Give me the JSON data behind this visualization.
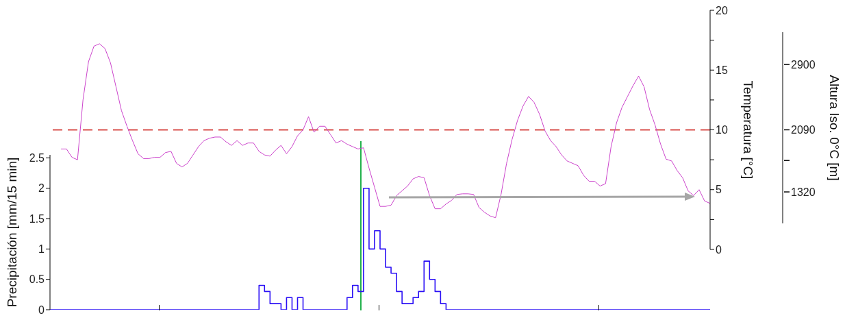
{
  "chart_data": [
    {
      "type": "step",
      "ylabel": "Precipitación [mm/15 min]",
      "categories": [
        null,
        null,
        null,
        null,
        null,
        null,
        null,
        null,
        null,
        null,
        null,
        null,
        null,
        null,
        null,
        null,
        null,
        null,
        null,
        null,
        null,
        null,
        null,
        null,
        null,
        null,
        null,
        null,
        null,
        null,
        null,
        null,
        null,
        null,
        null,
        null,
        null,
        null,
        null,
        null,
        null,
        null,
        null,
        null,
        null,
        null,
        null,
        null,
        null,
        null,
        null,
        null,
        null,
        null,
        null,
        null,
        null,
        null,
        null,
        null,
        null,
        null,
        null,
        null,
        null,
        null,
        null,
        null,
        null,
        null,
        null,
        null,
        null,
        null,
        null,
        null,
        null,
        null,
        null,
        null,
        null,
        null,
        null,
        null,
        null,
        null,
        null,
        null,
        null,
        null,
        null,
        null,
        null,
        null,
        null,
        null,
        null,
        null,
        null,
        null,
        null,
        null,
        null,
        null,
        null,
        null,
        null,
        null,
        null,
        null,
        null,
        null,
        null,
        null,
        null,
        null,
        null,
        null,
        null,
        null,
        null
      ],
      "ylim": [
        0,
        2.55
      ],
      "yticks": [
        0,
        0.5,
        1,
        1.5,
        2,
        2.5
      ],
      "tick_labels": "y",
      "series": [
        {
          "color": "#2b10f5",
          "values": [
            0,
            0,
            0,
            0,
            0,
            0,
            0,
            0,
            0,
            0,
            0,
            0,
            0,
            0,
            0,
            0,
            0,
            0,
            0,
            0,
            0,
            0,
            0,
            0,
            0,
            0,
            0,
            0,
            0,
            0,
            0,
            0,
            0,
            0,
            0,
            0,
            0,
            0,
            0.4,
            0.3,
            0.1,
            0.1,
            0,
            0.2,
            0,
            0.2,
            0,
            0,
            0,
            0,
            0,
            0,
            0,
            0,
            0.2,
            0.4,
            0.3,
            2.0,
            1.0,
            1.3,
            1.0,
            0.7,
            0.6,
            0.3,
            0.1,
            0.1,
            0.2,
            0.3,
            0.8,
            0.5,
            0.3,
            0.1,
            0,
            0,
            0,
            0,
            0,
            0,
            0,
            0,
            0,
            0,
            0,
            0,
            0,
            0,
            0,
            0,
            0,
            0,
            0,
            0,
            0,
            0,
            0,
            0,
            0,
            0,
            0,
            0,
            0,
            0,
            0,
            0,
            0,
            0,
            0,
            0,
            0,
            0,
            0,
            0,
            0,
            0,
            0,
            0,
            0,
            0,
            0,
            0,
            0
          ]
        }
      ]
    },
    {
      "type": "line",
      "ylabel": "Temperatura [°C]",
      "y2label": "Altura Iso. 0°C [m]",
      "categories": [
        null,
        null,
        null,
        null,
        null,
        null,
        null,
        null,
        null,
        null,
        null,
        null,
        null,
        null,
        null,
        null,
        null,
        null,
        null,
        null,
        null,
        null,
        null,
        null,
        null,
        null,
        null,
        null,
        null,
        null,
        null,
        null,
        null,
        null,
        null,
        null,
        null,
        null,
        null,
        null,
        null,
        null,
        null,
        null,
        null,
        null,
        null,
        null,
        null,
        null,
        null,
        null,
        null,
        null,
        null,
        null,
        null,
        null,
        null,
        null,
        null,
        null,
        null,
        null,
        null,
        null,
        null,
        null,
        null,
        null,
        null,
        null,
        null,
        null,
        null,
        null,
        null,
        null,
        null,
        null,
        null,
        null,
        null,
        null,
        null,
        null,
        null,
        null,
        null,
        null,
        null,
        null,
        null,
        null,
        null,
        null,
        null,
        null,
        null,
        null,
        null,
        null,
        null,
        null,
        null,
        null,
        null,
        null,
        null,
        null,
        null,
        null,
        null,
        null,
        null,
        null,
        null,
        null,
        null,
        null,
        null
      ],
      "tick_labels": "y",
      "ylim": [
        0,
        20
      ],
      "yticks": [
        0,
        {
          "value": 2.5,
          "label": null
        },
        5,
        {
          "value": 7.5,
          "label": null
        },
        10,
        {
          "value": 12.5,
          "label": null
        },
        15,
        {
          "value": 17.5,
          "label": null
        },
        20
      ],
      "y2lim": [
        930,
        3300
      ],
      "y2ticks": [
        1320,
        {
          "value": 1710,
          "label": null
        },
        2090,
        2900
      ],
      "series": [
        {
          "color": "#cc44cc",
          "values": [
            null,
            null,
            8.4,
            8.4,
            7.7,
            7.5,
            12.5,
            15.7,
            17.0,
            17.2,
            16.8,
            15.6,
            13.6,
            11.6,
            10.3,
            9.1,
            8.0,
            7.6,
            7.6,
            7.7,
            7.7,
            8.1,
            8.2,
            7.2,
            6.9,
            7.2,
            7.9,
            8.6,
            9.1,
            9.3,
            9.4,
            9.4,
            9.0,
            8.7,
            9.1,
            8.7,
            8.9,
            8.9,
            8.2,
            7.9,
            7.8,
            8.3,
            8.7,
            8.0,
            8.6,
            9.5,
            10.0,
            11.1,
            9.8,
            10.3,
            10.3,
            9.6,
            8.9,
            9.1,
            8.8,
            8.6,
            8.4,
            8.5,
            6.8,
            5.2,
            3.6,
            3.6,
            3.7,
            4.5,
            4.9,
            5.3,
            5.9,
            6.1,
            6.0,
            4.5,
            3.4,
            3.4,
            3.8,
            4.1,
            4.6,
            4.65,
            4.65,
            4.6,
            3.5,
            3.1,
            2.8,
            2.65,
            4.6,
            7.2,
            9.2,
            10.8,
            12.0,
            12.8,
            12.3,
            11.3,
            9.9,
            9.1,
            8.6,
            7.9,
            7.4,
            7.2,
            7.0,
            6.2,
            5.7,
            5.7,
            5.3,
            5.5,
            8.6,
            10.6,
            11.9,
            12.8,
            13.7,
            14.5,
            13.6,
            11.7,
            10.4,
            8.8,
            7.55,
            7.4,
            6.6,
            6.0,
            4.9,
            4.5,
            5.0,
            4.05,
            3.85
          ]
        }
      ],
      "ref_lines": [
        {
          "axis": "y",
          "value": 10,
          "color": "#d9534f",
          "line_style": "dashed"
        }
      ]
    }
  ]
}
